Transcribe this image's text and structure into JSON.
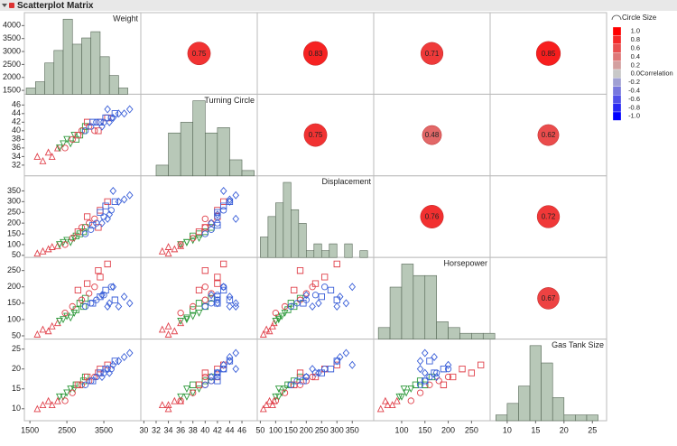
{
  "title": "Scatterplot Matrix",
  "chart_data": {
    "type": "scatter_matrix",
    "variables": [
      {
        "name": "Weight",
        "lim": [
          1350,
          4500
        ],
        "yticks": [
          1500,
          2000,
          2500,
          3000,
          3500,
          4000
        ],
        "xticks": [
          1500,
          2500,
          3500
        ],
        "values": [
          1700,
          1850,
          2000,
          2100,
          2250,
          2300,
          2400,
          2500,
          2600,
          2700,
          2750,
          2850,
          2950,
          3000,
          2450,
          2650,
          2900,
          3100,
          3250,
          2800,
          3050,
          3400,
          3600,
          3350,
          3000,
          3150,
          3300,
          3500,
          3700,
          3200,
          3400,
          3550,
          3800,
          3450,
          3650,
          3900,
          4050,
          4200,
          3750,
          3600
        ],
        "histogram": {
          "bins": [
            1400,
            1650,
            1900,
            2150,
            2400,
            2650,
            2900,
            3150,
            3400,
            3650,
            3900,
            4150
          ],
          "counts": [
            1,
            2,
            5,
            7,
            12,
            8,
            9,
            10,
            6,
            3,
            1
          ]
        }
      },
      {
        "name": "Turning Circle",
        "lim": [
          29.5,
          48.5
        ],
        "yticks": [
          32,
          34,
          36,
          38,
          40,
          42,
          44,
          46
        ],
        "xticks": [
          30,
          32,
          34,
          36,
          38,
          40,
          42,
          44,
          46
        ],
        "values": [
          34,
          33,
          35,
          34,
          36,
          36,
          37,
          38,
          37,
          39,
          38,
          39,
          40,
          41,
          36,
          38,
          40,
          41,
          40,
          39,
          42,
          42,
          43,
          40,
          40,
          41,
          42,
          42,
          43,
          42,
          42,
          43,
          44,
          41,
          42,
          44,
          44,
          45,
          43,
          45
        ],
        "histogram": {
          "bins": [
            32,
            34,
            36,
            38,
            40,
            42,
            44,
            46,
            48
          ],
          "counts": [
            2,
            8,
            10,
            14,
            8,
            9,
            3,
            1
          ]
        }
      },
      {
        "name": "Displacement",
        "lim": [
          40,
          420
        ],
        "yticks": [
          50,
          100,
          150,
          200,
          250,
          300,
          350
        ],
        "xticks": [
          50,
          100,
          150,
          200,
          250,
          300,
          350
        ],
        "values": [
          60,
          70,
          80,
          90,
          95,
          100,
          110,
          120,
          110,
          130,
          140,
          150,
          160,
          180,
          100,
          130,
          180,
          200,
          220,
          160,
          230,
          260,
          300,
          180,
          150,
          170,
          200,
          230,
          260,
          190,
          250,
          280,
          300,
          200,
          240,
          300,
          310,
          330,
          350,
          220
        ],
        "histogram": {
          "bins": [
            50,
            75,
            100,
            125,
            150,
            175,
            200,
            225,
            250,
            275,
            300,
            325,
            350,
            375,
            400
          ],
          "counts": [
            3,
            6,
            8,
            11,
            7,
            5,
            1,
            2,
            1,
            2,
            0,
            2,
            0,
            1
          ]
        }
      },
      {
        "name": "Horsepower",
        "lim": [
          40,
          290
        ],
        "yticks": [
          50,
          100,
          150,
          200,
          250
        ],
        "xticks": [
          100,
          150,
          200,
          250
        ],
        "values": [
          55,
          70,
          65,
          80,
          90,
          95,
          100,
          110,
          105,
          120,
          130,
          150,
          140,
          165,
          120,
          140,
          160,
          180,
          200,
          190,
          210,
          230,
          270,
          250,
          140,
          150,
          160,
          175,
          200,
          150,
          170,
          190,
          160,
          175,
          150,
          140,
          170,
          150,
          200,
          140
        ],
        "histogram": {
          "bins": [
            50,
            75,
            100,
            125,
            150,
            175,
            200,
            225,
            250,
            275,
            300
          ],
          "counts": [
            2,
            9,
            13,
            11,
            11,
            3,
            2,
            1,
            1,
            1
          ]
        }
      },
      {
        "name": "Gas Tank Size",
        "lim": [
          7,
          27.5
        ],
        "yticks": [
          10,
          15,
          20,
          25
        ],
        "xticks": [
          10,
          15,
          20,
          25
        ],
        "values": [
          10,
          11,
          12,
          11,
          12,
          13,
          13,
          14,
          15,
          15,
          16,
          16,
          17,
          18,
          12,
          14,
          16,
          17,
          18,
          16,
          18,
          20,
          21,
          19,
          16,
          17,
          18,
          19,
          20,
          17,
          19,
          20,
          22,
          18,
          19,
          22,
          23,
          24,
          21,
          20
        ],
        "histogram": {
          "bins": [
            8,
            10,
            12,
            14,
            16,
            18,
            20,
            22,
            24,
            26
          ],
          "counts": [
            1,
            3,
            6,
            13,
            10,
            4,
            1,
            1,
            1
          ]
        }
      }
    ],
    "point_group": [
      0,
      0,
      0,
      0,
      0,
      1,
      1,
      1,
      1,
      1,
      2,
      2,
      2,
      2,
      3,
      3,
      3,
      3,
      3,
      4,
      4,
      4,
      4,
      4,
      5,
      5,
      5,
      5,
      5,
      6,
      6,
      6,
      6,
      7,
      7,
      7,
      7,
      7,
      7,
      7
    ],
    "groups": [
      {
        "color": "#e0404a",
        "marker": "triangle"
      },
      {
        "color": "#2f9a3c",
        "marker": "triangle-down"
      },
      {
        "color": "#2f9a3c",
        "marker": "square"
      },
      {
        "color": "#e0404a",
        "marker": "circle"
      },
      {
        "color": "#e0404a",
        "marker": "square"
      },
      {
        "color": "#3a5fd8",
        "marker": "circle"
      },
      {
        "color": "#3a5fd8",
        "marker": "square"
      },
      {
        "color": "#3a5fd8",
        "marker": "diamond"
      }
    ],
    "histogram_color": "#b8c8b8",
    "correlations": [
      [
        0.75,
        0.83,
        0.71,
        0.85
      ],
      [
        0.75,
        0.48,
        0.62
      ],
      [
        0.76,
        0.72
      ],
      [
        0.67
      ]
    ],
    "color_scale": {
      "title": "Circle Size",
      "label": "Correlation",
      "high_color": "#ff0000",
      "mid_color": "#c8c8c8",
      "low_color": "#0000ff",
      "ticks": [
        {
          "value": 1,
          "label": "1.0"
        },
        0.8,
        0.6,
        0.4,
        0.2,
        {
          "value": 0,
          "label": "0.0"
        },
        -0.2,
        -0.4,
        -0.6,
        -0.8,
        {
          "value": -1,
          "label": "-1.0"
        }
      ]
    }
  }
}
